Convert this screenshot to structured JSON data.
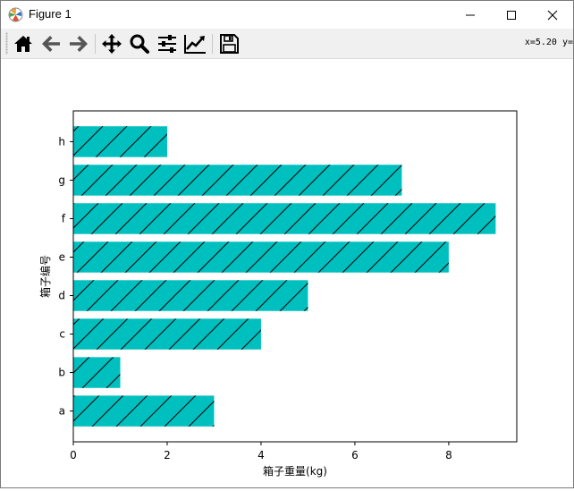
{
  "window": {
    "title": "Figure 1",
    "controls": [
      "minimize",
      "maximize",
      "close"
    ]
  },
  "toolbar": {
    "buttons": [
      {
        "name": "home",
        "icon": "home-icon"
      },
      {
        "name": "back",
        "icon": "arrow-left-icon"
      },
      {
        "name": "forward",
        "icon": "arrow-right-icon"
      },
      {
        "name": "pan",
        "icon": "move-icon"
      },
      {
        "name": "zoom",
        "icon": "magnifier-icon"
      },
      {
        "name": "subplots",
        "icon": "sliders-icon"
      },
      {
        "name": "axes",
        "icon": "line-chart-icon"
      },
      {
        "name": "save",
        "icon": "floppy-disk-icon"
      }
    ],
    "coords_text": "x=5.20 y="
  },
  "chart_data": {
    "type": "bar",
    "orientation": "horizontal",
    "categories": [
      "a",
      "b",
      "c",
      "d",
      "e",
      "f",
      "g",
      "h"
    ],
    "values": [
      3,
      1,
      4,
      5,
      8,
      9,
      7,
      2
    ],
    "xlabel": "箱子重量(kg)",
    "ylabel": "箱子编号",
    "xlim": [
      0,
      9.45
    ],
    "xticks": [
      0,
      2,
      4,
      6,
      8
    ],
    "grid": false,
    "bar_color": "#00bfbf",
    "hatch": "/",
    "edge_color": "#000000"
  }
}
